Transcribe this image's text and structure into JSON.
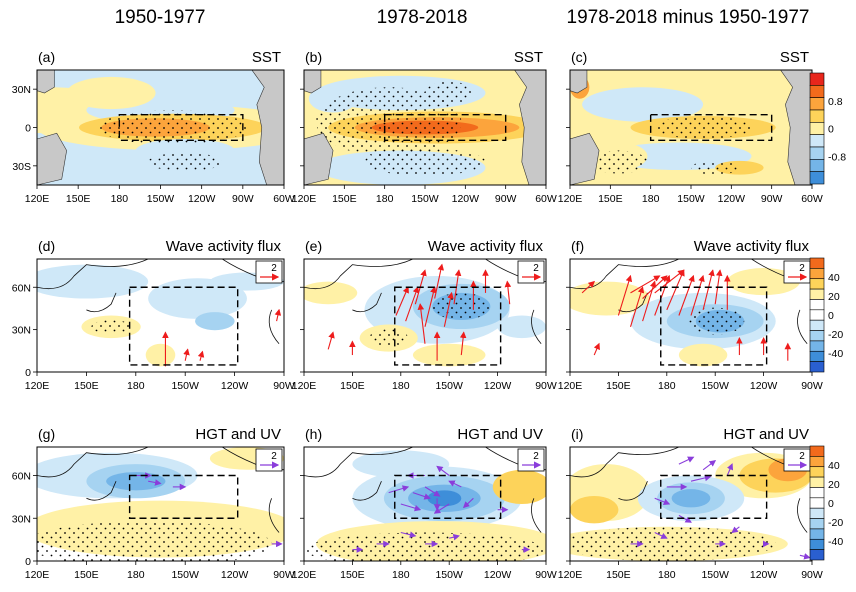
{
  "colors": {
    "ocean_bg": "#ffffff",
    "land": "#c8c8c8",
    "pos1": "#fff1a6",
    "pos2": "#fdd35a",
    "pos3": "#fca43c",
    "pos4": "#f26a1c",
    "pos5": "#e8261c",
    "neg1": "#cfe8f8",
    "neg2": "#a6d3f1",
    "neg3": "#74b5e8",
    "neg4": "#3e8ed9",
    "neg5": "#2a5fd0",
    "arrow_red": "#ee1c1c",
    "arrow_purple": "#8a3ddb"
  },
  "columns": [
    "1950-1977",
    "1978-2018",
    "1978-2018 minus 1950-1977"
  ],
  "colorbars": [
    {
      "ticks": [
        "0.8",
        "0",
        "-0.8"
      ]
    },
    {
      "ticks": [
        "40",
        "20",
        "0",
        "-20",
        "-40"
      ]
    },
    {
      "ticks": [
        "40",
        "20",
        "0",
        "-20",
        "-40"
      ]
    }
  ],
  "chart_data": [
    {
      "type": "heatmap",
      "panel": "(a)",
      "title": "SST",
      "period": "1950-1977",
      "x_ticks": [
        "120E",
        "150E",
        "180",
        "150W",
        "120W",
        "90W",
        "60W"
      ],
      "y_ticks": [
        "30N",
        "0",
        "30S"
      ],
      "xlim": [
        120,
        300
      ],
      "ylim": [
        -45,
        45
      ],
      "box": {
        "lon": [
          180,
          270
        ],
        "lat": [
          -10,
          10
        ]
      },
      "max_anomaly": 0.6
    },
    {
      "type": "heatmap",
      "panel": "(b)",
      "title": "SST",
      "period": "1978-2018",
      "x_ticks": [
        "120E",
        "150E",
        "180",
        "150W",
        "120W",
        "90W",
        "60W"
      ],
      "y_ticks": [],
      "xlim": [
        120,
        300
      ],
      "ylim": [
        -45,
        45
      ],
      "box": {
        "lon": [
          180,
          270
        ],
        "lat": [
          -10,
          10
        ]
      },
      "max_anomaly": 1.0
    },
    {
      "type": "heatmap",
      "panel": "(c)",
      "title": "SST",
      "period": "1978-2018 minus 1950-1977",
      "x_ticks": [
        "120E",
        "150E",
        "180",
        "150W",
        "120W",
        "90W",
        "60W"
      ],
      "y_ticks": [],
      "xlim": [
        120,
        300
      ],
      "ylim": [
        -45,
        45
      ],
      "box": {
        "lon": [
          180,
          270
        ],
        "lat": [
          -10,
          10
        ]
      },
      "max_anomaly": 0.3
    },
    {
      "type": "heatmap",
      "panel": "(d)",
      "title": "Wave activity flux",
      "period": "1950-1977",
      "x_ticks": [
        "120E",
        "150E",
        "180",
        "150W",
        "120W",
        "90W"
      ],
      "y_ticks": [
        "60N",
        "30N",
        "0"
      ],
      "xlim": [
        110,
        270
      ],
      "ylim": [
        0,
        80
      ],
      "box": {
        "lon": [
          170,
          240
        ],
        "lat": [
          5,
          60
        ]
      },
      "reference_vector": "2"
    },
    {
      "type": "heatmap",
      "panel": "(e)",
      "title": "Wave activity flux",
      "period": "1978-2018",
      "x_ticks": [
        "120E",
        "150E",
        "180",
        "150W",
        "120W",
        "90W"
      ],
      "y_ticks": [],
      "xlim": [
        110,
        270
      ],
      "ylim": [
        0,
        80
      ],
      "box": {
        "lon": [
          170,
          240
        ],
        "lat": [
          5,
          60
        ]
      },
      "reference_vector": "2"
    },
    {
      "type": "heatmap",
      "panel": "(f)",
      "title": "Wave activity flux",
      "period": "1978-2018 minus 1950-1977",
      "x_ticks": [
        "120E",
        "150E",
        "180",
        "150W",
        "120W",
        "90W"
      ],
      "y_ticks": [],
      "xlim": [
        110,
        270
      ],
      "ylim": [
        0,
        80
      ],
      "box": {
        "lon": [
          170,
          240
        ],
        "lat": [
          5,
          60
        ]
      },
      "reference_vector": "2"
    },
    {
      "type": "heatmap",
      "panel": "(g)",
      "title": "HGT and UV",
      "period": "1950-1977",
      "x_ticks": [
        "120E",
        "150E",
        "180",
        "150W",
        "120W",
        "90W"
      ],
      "y_ticks": [
        "60N",
        "30N",
        "0"
      ],
      "xlim": [
        110,
        270
      ],
      "ylim": [
        0,
        80
      ],
      "box": {
        "lon": [
          170,
          240
        ],
        "lat": [
          30,
          60
        ]
      },
      "reference_vector": "2"
    },
    {
      "type": "heatmap",
      "panel": "(h)",
      "title": "HGT and UV",
      "period": "1978-2018",
      "x_ticks": [
        "120E",
        "150E",
        "180",
        "150W",
        "120W",
        "90W"
      ],
      "y_ticks": [],
      "xlim": [
        110,
        270
      ],
      "ylim": [
        0,
        80
      ],
      "box": {
        "lon": [
          170,
          240
        ],
        "lat": [
          30,
          60
        ]
      },
      "reference_vector": "2"
    },
    {
      "type": "heatmap",
      "panel": "(i)",
      "title": "HGT and UV",
      "period": "1978-2018 minus 1950-1977",
      "x_ticks": [
        "120E",
        "150E",
        "180",
        "150W",
        "120W",
        "90W"
      ],
      "y_ticks": [],
      "xlim": [
        110,
        270
      ],
      "ylim": [
        0,
        80
      ],
      "box": {
        "lon": [
          170,
          240
        ],
        "lat": [
          30,
          60
        ]
      },
      "reference_vector": "2"
    }
  ]
}
